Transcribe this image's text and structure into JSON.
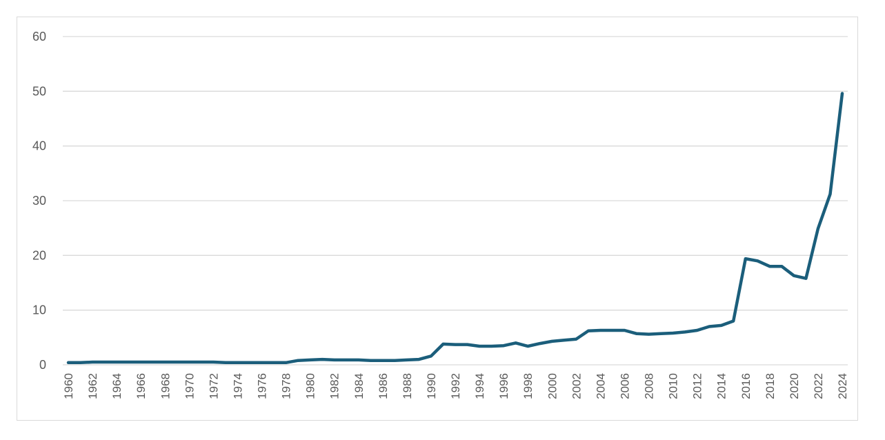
{
  "chart_data": {
    "type": "line",
    "title": "",
    "xlabel": "",
    "ylabel": "",
    "ylim": [
      0,
      60
    ],
    "y_ticks": [
      "0",
      "10",
      "20",
      "30",
      "40",
      "50",
      "60"
    ],
    "x_tick_labels": [
      "1960",
      "1962",
      "1964",
      "1966",
      "1968",
      "1970",
      "1972",
      "1974",
      "1976",
      "1978",
      "1980",
      "1982",
      "1984",
      "1986",
      "1988",
      "1990",
      "1992",
      "1994",
      "1996",
      "1998",
      "2000",
      "2002",
      "2004",
      "2006",
      "2008",
      "2010",
      "2012",
      "2014",
      "2016",
      "2018",
      "2020",
      "2022",
      "2024"
    ],
    "grid": "horizontal",
    "legend": "none",
    "line_color": "#1b5e7b",
    "series": [
      {
        "x": [
          1960,
          1961,
          1962,
          1963,
          1964,
          1965,
          1966,
          1967,
          1968,
          1969,
          1970,
          1971,
          1972,
          1973,
          1974,
          1975,
          1976,
          1977,
          1978,
          1979,
          1980,
          1981,
          1982,
          1983,
          1984,
          1985,
          1986,
          1987,
          1988,
          1989,
          1990,
          1991,
          1992,
          1993,
          1994,
          1995,
          1996,
          1997,
          1998,
          1999,
          2000,
          2001,
          2002,
          2003,
          2004,
          2005,
          2006,
          2007,
          2008,
          2009,
          2010,
          2011,
          2012,
          2013,
          2014,
          2015,
          2016,
          2017,
          2018,
          2019,
          2020,
          2021,
          2022,
          2023,
          2024
        ],
        "values": [
          0.4,
          0.4,
          0.5,
          0.5,
          0.5,
          0.5,
          0.5,
          0.5,
          0.5,
          0.5,
          0.5,
          0.5,
          0.5,
          0.4,
          0.4,
          0.4,
          0.4,
          0.4,
          0.4,
          0.8,
          0.9,
          1.0,
          0.9,
          0.9,
          0.9,
          0.8,
          0.8,
          0.8,
          0.9,
          1.0,
          1.6,
          3.8,
          3.7,
          3.7,
          3.4,
          3.4,
          3.5,
          4.0,
          3.4,
          3.9,
          4.3,
          4.5,
          4.7,
          6.2,
          6.3,
          6.3,
          6.3,
          5.7,
          5.6,
          5.7,
          5.8,
          6.0,
          6.3,
          7.0,
          7.2,
          8.0,
          19.4,
          19.0,
          18.0,
          18.0,
          16.3,
          15.8,
          24.9,
          31.2,
          49.6
        ]
      }
    ]
  }
}
